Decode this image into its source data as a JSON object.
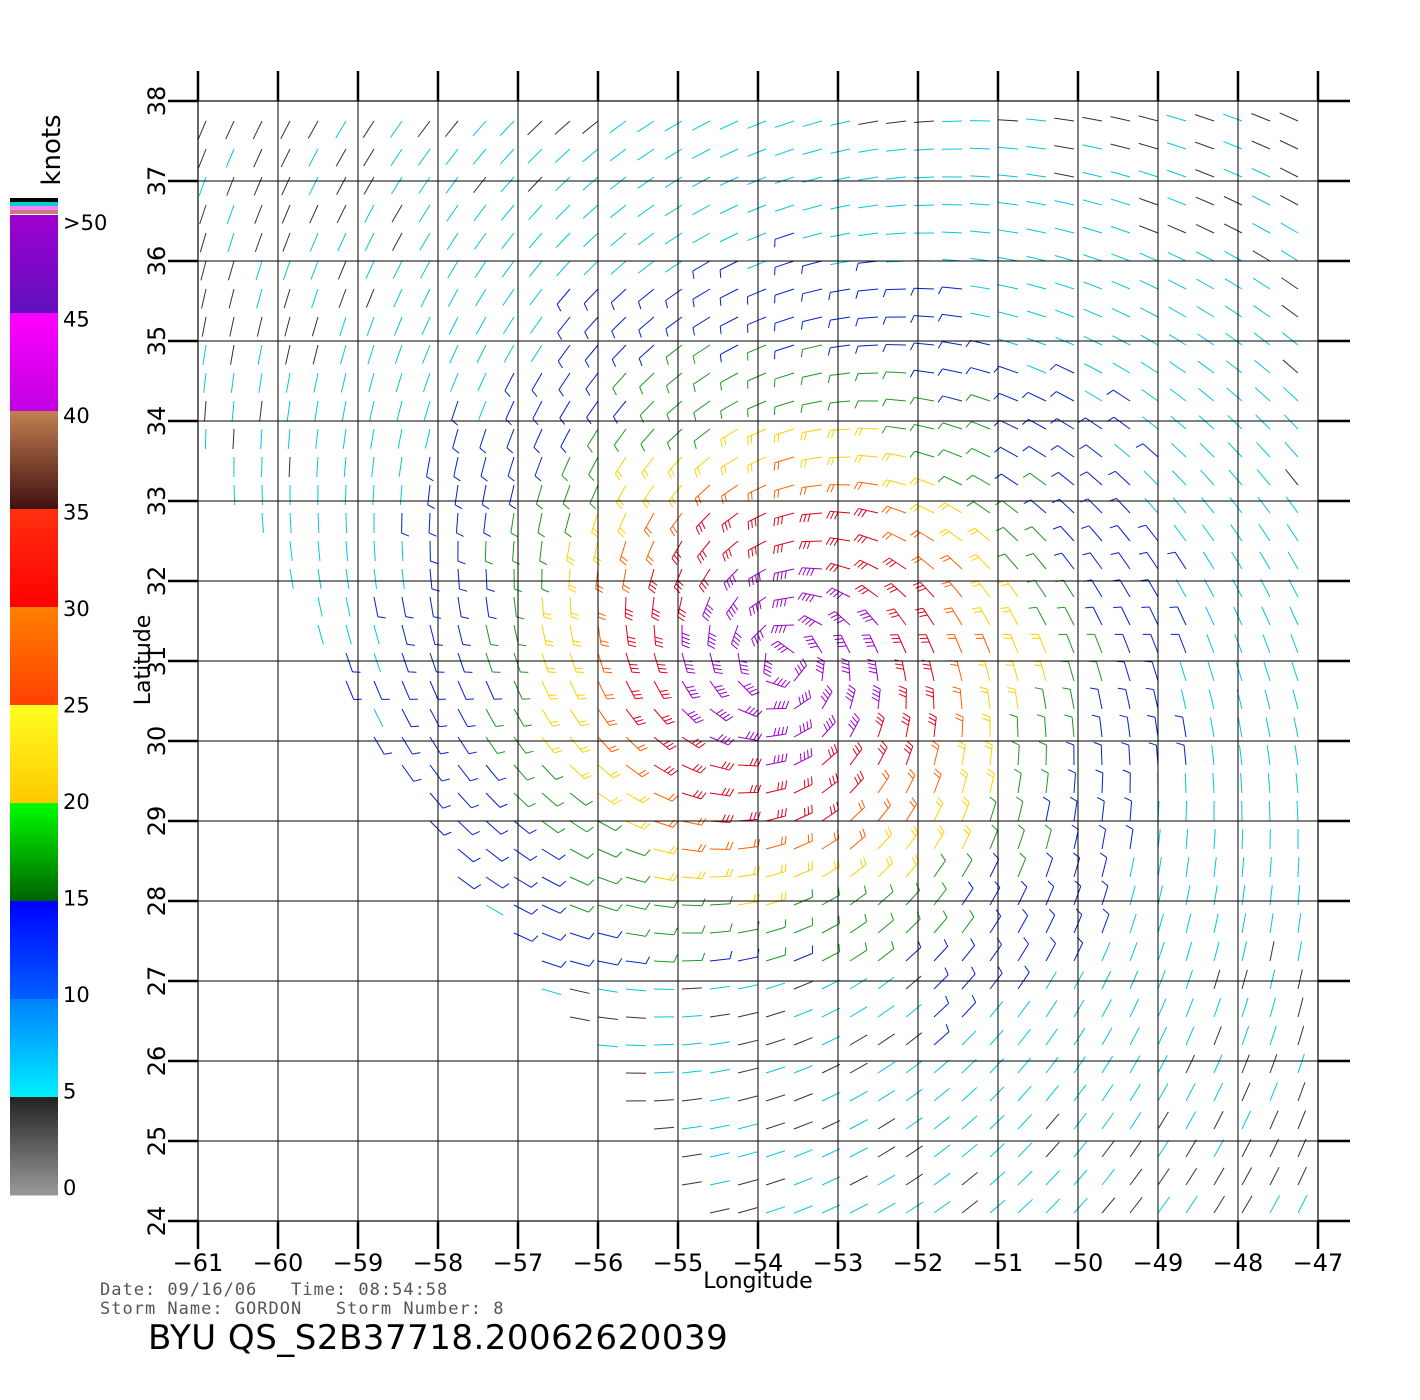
{
  "colors": {
    "background": "#ffffff",
    "grid": "#000000",
    "calm": "#333333",
    "light": "#00c8e0",
    "moderate": "#0022cc",
    "fresh": "#1a9a1a",
    "strong": "#ffd000",
    "gale": "#ff6000",
    "storm": "#e0001a",
    "extreme": "#9900cc"
  },
  "colorbar": {
    "unit_label": "knots",
    "tick_labels": [
      ">50",
      "45",
      "40",
      "35",
      "30",
      "25",
      "20",
      "15",
      "10",
      "5",
      "0"
    ],
    "bands": [
      {
        "from": 0,
        "to": 5,
        "top": "#222222",
        "bottom": "#9a9a9a"
      },
      {
        "from": 5,
        "to": 10,
        "top": "#0080ff",
        "bottom": "#00f0ff"
      },
      {
        "from": 10,
        "to": 15,
        "top": "#0000ff",
        "bottom": "#0060ff"
      },
      {
        "from": 15,
        "to": 20,
        "top": "#00ff00",
        "bottom": "#006000"
      },
      {
        "from": 20,
        "to": 25,
        "top": "#ffff20",
        "bottom": "#ffc800"
      },
      {
        "from": 25,
        "to": 30,
        "top": "#ff8000",
        "bottom": "#ff4000"
      },
      {
        "from": 30,
        "to": 35,
        "top": "#ff3010",
        "bottom": "#ff0000"
      },
      {
        "from": 35,
        "to": 40,
        "top": "#c08050",
        "bottom": "#401010"
      },
      {
        "from": 40,
        "to": 45,
        "top": "#ff00ff",
        "bottom": "#c000e0"
      },
      {
        "from": 45,
        "to": 50,
        "top": "#a000d0",
        "bottom": "#6010c0"
      }
    ]
  },
  "map": {
    "x_label": "Longitude",
    "y_label": "Latitude",
    "lon_range": [
      -61,
      -47
    ],
    "lat_range": [
      24,
      38
    ],
    "lon_ticks": [
      -61,
      -60,
      -59,
      -58,
      -57,
      -56,
      -55,
      -54,
      -53,
      -52,
      -51,
      -50,
      -49,
      -48,
      -47
    ],
    "lat_ticks": [
      24,
      25,
      26,
      27,
      28,
      29,
      30,
      31,
      32,
      33,
      34,
      35,
      36,
      37,
      38
    ],
    "storm_center": {
      "lon": -53.7,
      "lat": 31.0
    }
  },
  "info": {
    "line1": "Date: 09/16/06   Time: 08:54:58",
    "line2": "Storm Name: GORDON   Storm Number: 8"
  },
  "title": "BYU QS_S2B37718.20062620039"
}
